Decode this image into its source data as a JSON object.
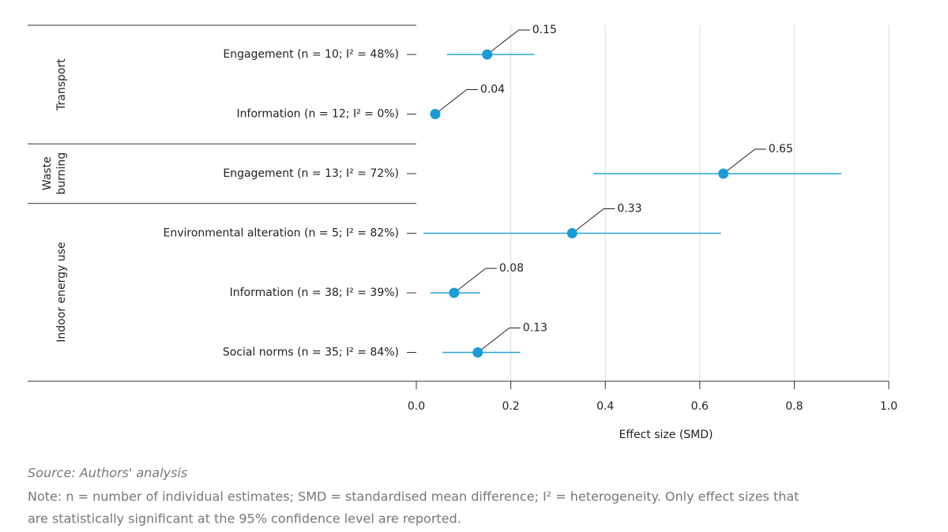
{
  "chart_data": {
    "type": "forest",
    "groups": [
      {
        "label": [
          "Transport"
        ],
        "categories": [
          "Engagement (n = 10; I² = 48%)",
          "Information (n = 12; I² = 0%)"
        ],
        "values": [
          0.15,
          0.04
        ],
        "ci_low": [
          0.065,
          null
        ],
        "ci_high": [
          0.25,
          null
        ]
      },
      {
        "label": [
          "Waste",
          "burning"
        ],
        "categories": [
          "Engagement (n = 13; I² = 72%)"
        ],
        "values": [
          0.65
        ],
        "ci_low": [
          0.375
        ],
        "ci_high": [
          0.9
        ]
      },
      {
        "label": [
          "Indoor energy use"
        ],
        "categories": [
          "Environmental alteration (n = 5; I² = 82%)",
          "Information (n = 38; I² = 39%)",
          "Social norms (n = 35; I² = 84%)"
        ],
        "values": [
          0.33,
          0.08,
          0.13
        ],
        "ci_low": [
          0.015,
          0.03,
          0.055
        ],
        "ci_high": [
          0.645,
          0.135,
          0.22
        ]
      }
    ],
    "xlim": [
      0,
      1.0
    ],
    "xticks": [
      {
        "value": 0,
        "label": "0.0"
      },
      0.2,
      0.4,
      0.6,
      0.8,
      {
        "value": 1,
        "label": "1.0"
      }
    ],
    "xlabel": "Effect size (SMD)",
    "grid": true,
    "color": "#1a9bd7",
    "source": "Source: Authors' analysis",
    "note": [
      "Note: n = number of individual estimates; SMD = standardised mean difference; I² = heterogeneity. Only effect sizes that",
      "are statistically significant at the 95% confidence level are reported."
    ]
  }
}
